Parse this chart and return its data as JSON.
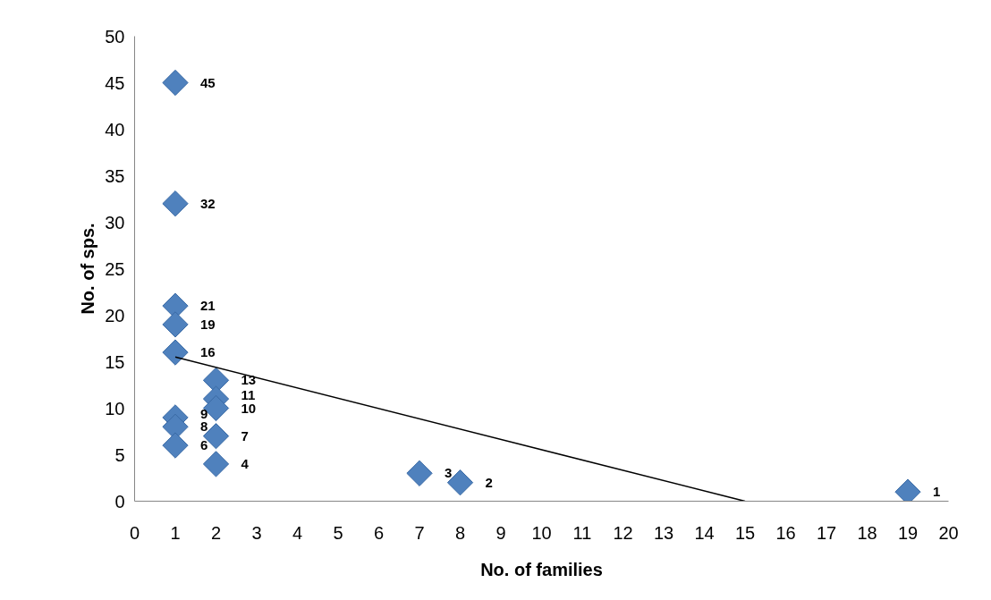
{
  "chart_data": {
    "type": "scatter",
    "xlabel": "No. of families",
    "ylabel": "No. of sps.",
    "xlim": [
      0,
      20
    ],
    "xticks": [
      0,
      1,
      2,
      3,
      4,
      5,
      6,
      7,
      8,
      9,
      10,
      11,
      12,
      13,
      14,
      15,
      16,
      17,
      18,
      19,
      20
    ],
    "ylim": [
      0,
      50
    ],
    "yticks": [
      0,
      5,
      10,
      15,
      20,
      25,
      30,
      35,
      40,
      45,
      50
    ],
    "grid": false,
    "series": [
      {
        "marker": "diamond",
        "data_labels": true,
        "color": "#4f81bd",
        "x": [
          1,
          1,
          1,
          1,
          1,
          2,
          2,
          2,
          1,
          1,
          2,
          1,
          2,
          7,
          8,
          19
        ],
        "values": [
          45,
          32,
          21,
          19,
          16,
          13,
          11,
          10,
          9,
          8,
          7,
          6,
          4,
          3,
          2,
          1
        ]
      },
      {
        "type": "line",
        "color": "#000000",
        "x": [
          1,
          15
        ],
        "values": [
          15.5,
          0
        ]
      }
    ]
  }
}
